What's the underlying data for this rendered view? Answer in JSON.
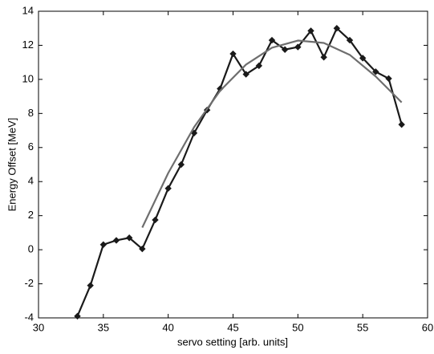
{
  "chart_data": {
    "type": "line",
    "xlabel": "servo setting [arb. units]",
    "ylabel": "Energy Offset [MeV]",
    "xlim": [
      30,
      60
    ],
    "xticks": [
      30,
      35,
      40,
      45,
      50,
      55,
      60
    ],
    "ylim": [
      -4,
      14
    ],
    "yticks": [
      -4,
      -2,
      0,
      2,
      4,
      6,
      8,
      10,
      12,
      14
    ],
    "grid": false,
    "series": [
      {
        "color": "#1a1a1a",
        "marker": "diamond",
        "x": [
          33,
          34,
          35,
          36,
          37,
          38,
          39,
          40,
          41,
          42,
          43,
          44,
          45,
          46,
          47,
          48,
          49,
          50,
          51,
          52,
          53,
          54,
          55,
          56,
          57,
          58
        ],
        "values": [
          -3.9,
          -2.1,
          0.3,
          0.55,
          0.7,
          0.05,
          1.75,
          3.6,
          5.0,
          6.85,
          8.2,
          9.45,
          11.5,
          10.3,
          10.8,
          12.3,
          11.75,
          11.9,
          12.85,
          11.3,
          13.0,
          12.3,
          11.25,
          10.45,
          10.05,
          7.35
        ]
      },
      {
        "color": "#6e6e6e",
        "x": [
          38,
          40,
          42,
          44,
          46,
          48,
          50,
          52,
          54,
          56,
          58
        ],
        "values": [
          1.3,
          4.5,
          7.2,
          9.33,
          10.87,
          11.86,
          12.28,
          12.14,
          11.44,
          10.17,
          8.65
        ]
      }
    ]
  }
}
